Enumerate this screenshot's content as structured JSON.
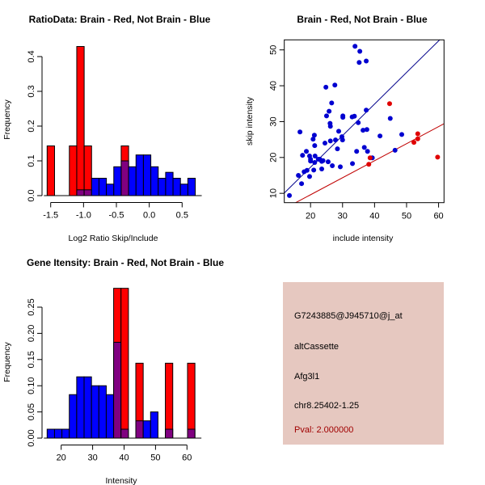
{
  "colors": {
    "red": "#ff0000",
    "blue": "#0000ff",
    "overlap": "#800080",
    "panel": "#e6c8c0",
    "pval": "#a00000",
    "blue_line": "#00008b",
    "red_line": "#c00000",
    "red_point": "#e00000",
    "blue_point": "#0000d0"
  },
  "chart_data": [
    {
      "type": "bar",
      "title": "RatioData: Brain - Red, Not Brain - Blue",
      "xlabel": "Log2 Ratio Skip/Include",
      "ylabel": "Frequency",
      "bin_start": -1.554,
      "bin_width": 0.1127,
      "xticks": [
        -1.5,
        -1.0,
        -0.5,
        0.0,
        0.5
      ],
      "xtick_labels": [
        "-1.5",
        "-1.0",
        "-0.5",
        "0.0",
        "0.5"
      ],
      "yticks": [
        0.0,
        0.1,
        0.2,
        0.3,
        0.4
      ],
      "ytick_labels": [
        "0.0",
        "0.1",
        "0.2",
        "0.3",
        "0.4"
      ],
      "series": [
        {
          "name": "Brain",
          "color": "red",
          "values": [
            0.143,
            0,
            0,
            0.143,
            0.429,
            0.143,
            0,
            0,
            0,
            0,
            0.143,
            0,
            0,
            0,
            0,
            0,
            0,
            0,
            0,
            0
          ]
        },
        {
          "name": "Not Brain",
          "color": "blue",
          "values": [
            0,
            0,
            0,
            0,
            0.0167,
            0.0167,
            0.05,
            0.05,
            0.033,
            0.083,
            0.1,
            0.083,
            0.117,
            0.117,
            0.083,
            0.05,
            0.067,
            0.05,
            0.033,
            0.05
          ]
        }
      ]
    },
    {
      "type": "scatter",
      "title": "Brain - Red, Not Brain - Blue",
      "xlabel": "include intensity",
      "ylabel": "skip intensity",
      "xlim": [
        11.8,
        61.7
      ],
      "ylim": [
        7.4,
        52.8
      ],
      "xticks": [
        20,
        30,
        40,
        50,
        60
      ],
      "xtick_labels": [
        "20",
        "30",
        "40",
        "50",
        "60"
      ],
      "yticks": [
        10,
        20,
        30,
        40,
        50
      ],
      "ytick_labels": [
        "10",
        "20",
        "30",
        "40",
        "50"
      ],
      "series": [
        {
          "name": "Not Brain",
          "color": "blue",
          "points": [
            [
              33.9,
              51.0
            ],
            [
              35.4,
              49.6
            ],
            [
              35.2,
              46.5
            ],
            [
              37.4,
              46.9
            ],
            [
              24.8,
              39.6
            ],
            [
              27.6,
              40.2
            ],
            [
              26.6,
              35.2
            ],
            [
              25.8,
              32.9
            ],
            [
              25.0,
              31.6
            ],
            [
              30.1,
              31.6
            ],
            [
              30.1,
              31.2
            ],
            [
              33.0,
              31.3
            ],
            [
              33.7,
              31.5
            ],
            [
              37.4,
              33.2
            ],
            [
              34.9,
              29.7
            ],
            [
              26.1,
              29.5
            ],
            [
              26.2,
              28.7
            ],
            [
              44.9,
              30.9
            ],
            [
              16.7,
              27.1
            ],
            [
              21.2,
              26.2
            ],
            [
              20.8,
              25.1
            ],
            [
              28.8,
              27.3
            ],
            [
              36.4,
              27.6
            ],
            [
              37.6,
              27.8
            ],
            [
              41.7,
              26.0
            ],
            [
              48.5,
              26.4
            ],
            [
              29.8,
              25.8
            ],
            [
              30.0,
              24.9
            ],
            [
              26.2,
              24.6
            ],
            [
              27.8,
              24.9
            ],
            [
              24.5,
              24.0
            ],
            [
              21.3,
              23.3
            ],
            [
              28.4,
              22.4
            ],
            [
              36.8,
              22.8
            ],
            [
              18.7,
              21.7
            ],
            [
              34.4,
              21.7
            ],
            [
              37.8,
              21.7
            ],
            [
              46.4,
              22.0
            ],
            [
              17.5,
              20.6
            ],
            [
              19.7,
              20.4
            ],
            [
              21.4,
              20.4
            ],
            [
              20.0,
              19.5
            ],
            [
              20.0,
              19.0
            ],
            [
              22.4,
              19.5
            ],
            [
              22.9,
              19.5
            ],
            [
              23.9,
              19.1
            ],
            [
              23.5,
              18.9
            ],
            [
              25.5,
              18.8
            ],
            [
              21.3,
              18.6
            ],
            [
              26.8,
              17.7
            ],
            [
              29.3,
              17.4
            ],
            [
              33.1,
              18.3
            ],
            [
              18.9,
              16.4
            ],
            [
              18.0,
              16.0
            ],
            [
              21.0,
              16.5
            ],
            [
              23.5,
              16.8
            ],
            [
              16.2,
              15.0
            ],
            [
              19.7,
              14.7
            ],
            [
              17.2,
              12.7
            ],
            [
              13.4,
              9.4
            ],
            [
              39.3,
              19.9
            ]
          ]
        },
        {
          "name": "Brain",
          "color": "red",
          "points": [
            [
              44.7,
              35.0
            ],
            [
              38.6,
              19.9
            ],
            [
              38.2,
              18.1
            ],
            [
              53.5,
              26.6
            ],
            [
              53.5,
              25.2
            ],
            [
              52.3,
              24.2
            ],
            [
              59.7,
              20.1
            ]
          ]
        }
      ],
      "lines": [
        {
          "name": "Not Brain fit",
          "color": "blue_line",
          "slope": 0.88,
          "intercept": -0.3
        },
        {
          "name": "Brain fit",
          "color": "red_line",
          "slope": 0.475,
          "intercept": 0.1
        }
      ]
    },
    {
      "type": "bar",
      "title": "Gene Itensity: Brain - Red, Not Brain - Blue",
      "xlabel": "Intensity",
      "ylabel": "Frequency",
      "bin_start": 15.53,
      "bin_width": 2.35,
      "xticks": [
        20,
        30,
        40,
        50,
        60
      ],
      "xtick_labels": [
        "20",
        "30",
        "40",
        "50",
        "60"
      ],
      "yticks": [
        0.0,
        0.05,
        0.1,
        0.15,
        0.2,
        0.25
      ],
      "ytick_labels": [
        "0.00",
        "0.05",
        "0.10",
        "0.15",
        "0.20",
        "0.25"
      ],
      "series": [
        {
          "name": "Brain",
          "color": "red",
          "values": [
            0,
            0,
            0,
            0,
            0,
            0,
            0,
            0,
            0,
            0.286,
            0.286,
            0,
            0.143,
            0,
            0,
            0,
            0.143,
            0,
            0,
            0.143
          ]
        },
        {
          "name": "Not Brain",
          "color": "blue",
          "values": [
            0.017,
            0.017,
            0.017,
            0.083,
            0.117,
            0.117,
            0.1,
            0.1,
            0.083,
            0.183,
            0.017,
            0,
            0.033,
            0.033,
            0.05,
            0,
            0.017,
            0,
            0,
            0.017
          ]
        }
      ]
    }
  ],
  "info_panel": {
    "probe_id": "G7243885@J945710@j_at",
    "event_type": "altCassette",
    "gene": "Afg3l1",
    "location": "chr8.25402-1.25",
    "pval": "Pval: 2.000000"
  }
}
